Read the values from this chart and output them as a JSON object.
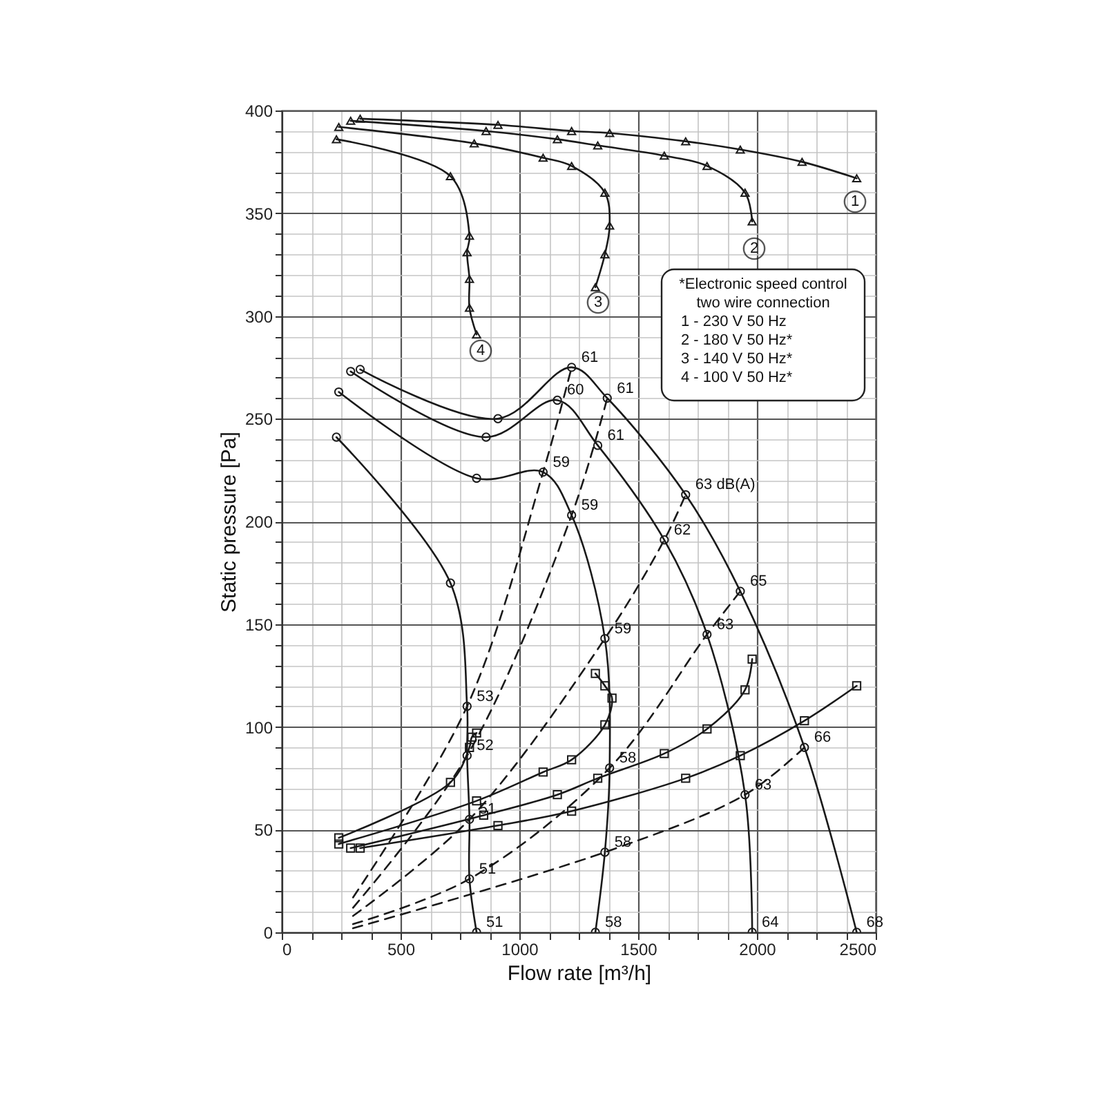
{
  "chart_data": {
    "type": "line",
    "xlabel": "Flow rate [m³/h]",
    "ylabel": "Static pressure [Pa]",
    "xlim": [
      0,
      2500
    ],
    "ylim": [
      0,
      400
    ],
    "xticks": [
      0,
      {
        "value": 125,
        "label": null
      },
      {
        "value": 250,
        "label": null
      },
      {
        "value": 375,
        "label": null
      },
      500,
      {
        "value": 625,
        "label": null
      },
      {
        "value": 750,
        "label": null
      },
      {
        "value": 875,
        "label": null
      },
      1000,
      {
        "value": 1125,
        "label": null
      },
      {
        "value": 1250,
        "label": null
      },
      {
        "value": 1375,
        "label": null
      },
      1500,
      {
        "value": 1625,
        "label": null
      },
      {
        "value": 1750,
        "label": null
      },
      {
        "value": 1875,
        "label": null
      },
      2000,
      {
        "value": 2125,
        "label": null
      },
      {
        "value": 2250,
        "label": null
      },
      {
        "value": 2375,
        "label": null
      },
      2500
    ],
    "yticks": [
      0,
      {
        "value": 10,
        "label": null
      },
      {
        "value": 20,
        "label": null
      },
      {
        "value": 30,
        "label": null
      },
      {
        "value": 40,
        "label": null
      },
      50,
      {
        "value": 60,
        "label": null
      },
      {
        "value": 70,
        "label": null
      },
      {
        "value": 80,
        "label": null
      },
      {
        "value": 90,
        "label": null
      },
      100,
      {
        "value": 110,
        "label": null
      },
      {
        "value": 120,
        "label": null
      },
      {
        "value": 130,
        "label": null
      },
      {
        "value": 140,
        "label": null
      },
      150,
      {
        "value": 160,
        "label": null
      },
      {
        "value": 170,
        "label": null
      },
      {
        "value": 180,
        "label": null
      },
      {
        "value": 190,
        "label": null
      },
      200,
      {
        "value": 210,
        "label": null
      },
      {
        "value": 220,
        "label": null
      },
      {
        "value": 230,
        "label": null
      },
      {
        "value": 240,
        "label": null
      },
      250,
      {
        "value": 260,
        "label": null
      },
      {
        "value": 270,
        "label": null
      },
      {
        "value": 280,
        "label": null
      },
      {
        "value": 290,
        "label": null
      },
      300,
      {
        "value": 310,
        "label": null
      },
      {
        "value": 320,
        "label": null
      },
      {
        "value": 330,
        "label": null
      },
      {
        "value": 340,
        "label": null
      },
      350,
      {
        "value": 360,
        "label": null
      },
      {
        "value": 370,
        "label": null
      },
      {
        "value": 380,
        "label": null
      },
      {
        "value": 390,
        "label": null
      },
      400
    ],
    "grid": true,
    "series": [
      {
        "color": "#1a1a1a",
        "marker": "triangle",
        "line_style": "solid",
        "x": [
          330,
          910,
          1220,
          1380,
          1700,
          1930,
          2190,
          2420
        ],
        "values": [
          396,
          393,
          390,
          389,
          385,
          381,
          375,
          367
        ]
      },
      {
        "color": "#1a1a1a",
        "marker": "triangle",
        "line_style": "solid",
        "x": [
          290,
          860,
          1160,
          1330,
          1610,
          1790,
          1950,
          1980
        ],
        "values": [
          395,
          390,
          386,
          383,
          378,
          373,
          360,
          346
        ]
      },
      {
        "color": "#1a1a1a",
        "marker": "triangle",
        "line_style": "solid",
        "x": [
          240,
          810,
          1100,
          1220,
          1360,
          1380,
          1360,
          1320
        ],
        "values": [
          392,
          384,
          377,
          373,
          360,
          344,
          330,
          314
        ]
      },
      {
        "color": "#1a1a1a",
        "marker": "triangle",
        "line_style": "solid",
        "x": [
          230,
          710,
          790,
          780,
          790,
          790,
          820
        ],
        "values": [
          386,
          368,
          339,
          331,
          318,
          304,
          291
        ]
      },
      {
        "color": "#1a1a1a",
        "marker": "circle",
        "line_style": "solid",
        "x": [
          330,
          910,
          1220,
          1370,
          1700,
          1930,
          2200,
          2420
        ],
        "values": [
          274,
          250,
          275,
          260,
          213,
          166,
          90,
          0
        ]
      },
      {
        "color": "#1a1a1a",
        "marker": "circle",
        "line_style": "solid",
        "x": [
          290,
          860,
          1160,
          1330,
          1610,
          1790,
          1950,
          1980
        ],
        "values": [
          273,
          241,
          259,
          237,
          191,
          145,
          67,
          0
        ]
      },
      {
        "color": "#1a1a1a",
        "marker": "circle",
        "line_style": "solid",
        "x": [
          240,
          820,
          1100,
          1220,
          1360,
          1380,
          1360,
          1320
        ],
        "values": [
          263,
          221,
          224,
          203,
          143,
          80,
          39,
          0
        ]
      },
      {
        "color": "#1a1a1a",
        "marker": "circle",
        "line_style": "solid",
        "x": [
          230,
          710,
          780,
          780,
          790,
          790,
          820
        ],
        "values": [
          241,
          170,
          110,
          86,
          55,
          26,
          0
        ]
      },
      {
        "color": "#1a1a1a",
        "marker": "square",
        "line_style": "solid",
        "x": [
          240,
          710,
          790,
          800,
          820
        ],
        "values": [
          46,
          73,
          90,
          95,
          97
        ]
      },
      {
        "color": "#1a1a1a",
        "marker": "square",
        "line_style": "solid",
        "x": [
          240,
          820,
          1100,
          1220,
          1360,
          1390,
          1360,
          1320
        ],
        "values": [
          43,
          64,
          78,
          84,
          101,
          114,
          120,
          126
        ]
      },
      {
        "color": "#1a1a1a",
        "marker": "square",
        "line_style": "solid",
        "x": [
          290,
          850,
          1160,
          1330,
          1610,
          1790,
          1950,
          1980
        ],
        "values": [
          41,
          57,
          67,
          75,
          87,
          99,
          118,
          133
        ]
      },
      {
        "color": "#1a1a1a",
        "marker": "square",
        "line_style": "solid",
        "x": [
          330,
          910,
          1220,
          1700,
          1930,
          2200,
          2420
        ],
        "values": [
          41,
          52,
          59,
          75,
          86,
          103,
          120
        ]
      },
      {
        "color": "#1a1a1a",
        "marker": "none",
        "line_style": "dashed",
        "x": [
          300,
          780,
          1100,
          1220
        ],
        "values": [
          17,
          110,
          224,
          275
        ]
      },
      {
        "color": "#1a1a1a",
        "marker": "none",
        "line_style": "dashed",
        "x": [
          300,
          780,
          1220,
          1370
        ],
        "values": [
          12,
          86,
          203,
          260
        ]
      },
      {
        "color": "#1a1a1a",
        "marker": "none",
        "line_style": "dashed",
        "x": [
          300,
          790,
          1360,
          1610,
          1700
        ],
        "values": [
          8,
          55,
          143,
          191,
          213
        ]
      },
      {
        "color": "#1a1a1a",
        "marker": "none",
        "line_style": "dashed",
        "x": [
          300,
          790,
          1380,
          1790,
          1930
        ],
        "values": [
          4,
          26,
          80,
          145,
          166
        ]
      },
      {
        "color": "#1a1a1a",
        "marker": "none",
        "line_style": "dashed",
        "x": [
          300,
          1360,
          1950,
          2200
        ],
        "values": [
          2,
          39,
          67,
          90
        ]
      }
    ],
    "annotations": [
      {
        "text": "61",
        "x": 1220,
        "y": 275
      },
      {
        "text": "61",
        "x": 1370,
        "y": 260
      },
      {
        "text": "63 dB(A)",
        "x": 1700,
        "y": 213
      },
      {
        "text": "65",
        "x": 1930,
        "y": 166
      },
      {
        "text": "66",
        "x": 2200,
        "y": 90
      },
      {
        "text": "68",
        "x": 2420,
        "y": 0
      },
      {
        "text": "60",
        "x": 1160,
        "y": 259
      },
      {
        "text": "61",
        "x": 1330,
        "y": 237
      },
      {
        "text": "62",
        "x": 1610,
        "y": 191
      },
      {
        "text": "63",
        "x": 1790,
        "y": 145
      },
      {
        "text": "63",
        "x": 1950,
        "y": 67
      },
      {
        "text": "64",
        "x": 1980,
        "y": 0
      },
      {
        "text": "59",
        "x": 1100,
        "y": 224
      },
      {
        "text": "59",
        "x": 1220,
        "y": 203
      },
      {
        "text": "59",
        "x": 1360,
        "y": 143
      },
      {
        "text": "58",
        "x": 1380,
        "y": 80
      },
      {
        "text": "58",
        "x": 1360,
        "y": 39
      },
      {
        "text": "58",
        "x": 1320,
        "y": 0
      },
      {
        "text": "53",
        "x": 780,
        "y": 110
      },
      {
        "text": "52",
        "x": 780,
        "y": 86
      },
      {
        "text": "51",
        "x": 790,
        "y": 55
      },
      {
        "text": "51",
        "x": 790,
        "y": 26
      },
      {
        "text": "51",
        "x": 820,
        "y": 0
      },
      "1",
      "2",
      "3",
      "4",
      "*Electronic speed control",
      "two wire connection",
      "1 - 230 V 50 Hz",
      "2 - 180 V 50 Hz*",
      "3 - 140 V 50 Hz*",
      "4 - 100 V 50 Hz*"
    ]
  }
}
